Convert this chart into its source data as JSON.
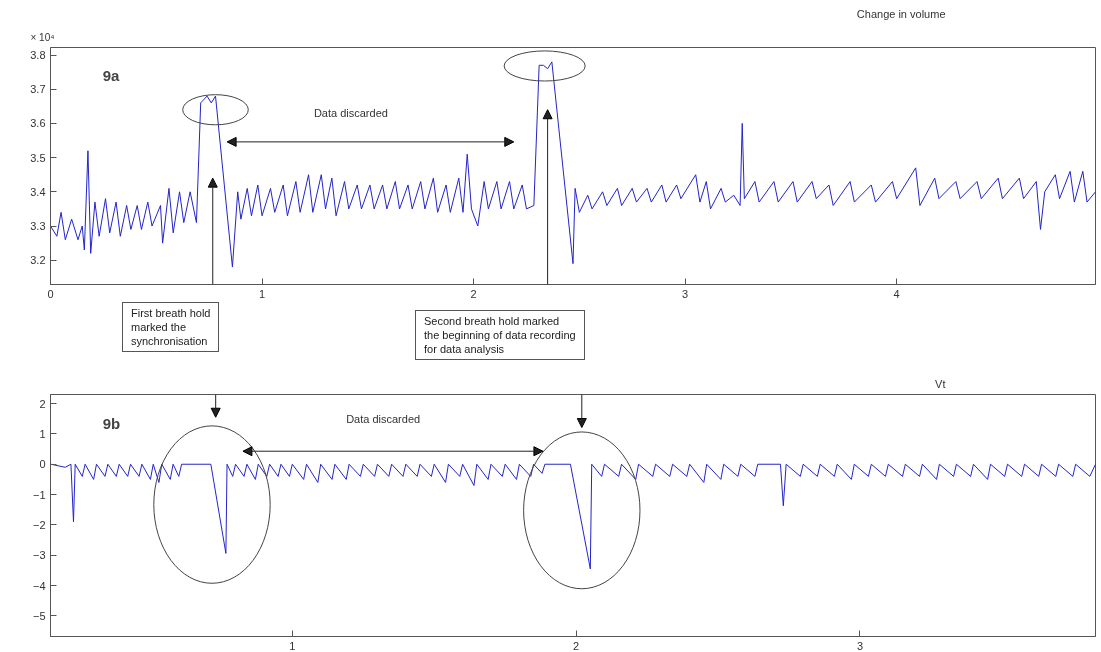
{
  "chart_data": [
    {
      "type": "line",
      "title": "Change in volume",
      "annotations": [
        "9a",
        "× 10⁴",
        "Data discarded"
      ],
      "xlim": [
        0,
        4.94
      ],
      "ylim": [
        3.129,
        3.822
      ],
      "xticks": [
        0,
        1,
        2,
        3,
        4
      ],
      "yticks": [
        3.2,
        3.3,
        3.4,
        3.5,
        3.6,
        3.7,
        3.8
      ],
      "x": [
        0,
        0.03,
        0.05,
        0.07,
        0.1,
        0.13,
        0.15,
        0.16,
        0.177,
        0.19,
        0.21,
        0.23,
        0.26,
        0.28,
        0.31,
        0.33,
        0.36,
        0.38,
        0.41,
        0.43,
        0.46,
        0.48,
        0.52,
        0.53,
        0.56,
        0.58,
        0.61,
        0.63,
        0.66,
        0.69,
        0.71,
        0.74,
        0.76,
        0.78,
        0.86,
        0.885,
        0.9,
        0.93,
        0.95,
        0.98,
        1.0,
        1.04,
        1.06,
        1.1,
        1.12,
        1.16,
        1.18,
        1.22,
        1.24,
        1.28,
        1.3,
        1.33,
        1.35,
        1.39,
        1.41,
        1.45,
        1.47,
        1.51,
        1.53,
        1.57,
        1.59,
        1.63,
        1.65,
        1.69,
        1.71,
        1.75,
        1.77,
        1.81,
        1.83,
        1.87,
        1.89,
        1.93,
        1.95,
        1.97,
        1.99,
        2.02,
        2.05,
        2.07,
        2.11,
        2.13,
        2.17,
        2.19,
        2.23,
        2.25,
        2.285,
        2.31,
        2.33,
        2.35,
        2.37,
        2.47,
        2.48,
        2.5,
        2.54,
        2.56,
        2.61,
        2.63,
        2.68,
        2.7,
        2.75,
        2.77,
        2.82,
        2.84,
        2.89,
        2.91,
        2.96,
        2.98,
        3.05,
        3.07,
        3.1,
        3.12,
        3.17,
        3.19,
        3.23,
        3.26,
        3.27,
        3.28,
        3.33,
        3.35,
        3.42,
        3.44,
        3.51,
        3.53,
        3.6,
        3.62,
        3.68,
        3.7,
        3.78,
        3.8,
        3.88,
        3.9,
        3.98,
        4.0,
        4.09,
        4.11,
        4.18,
        4.2,
        4.28,
        4.3,
        4.38,
        4.4,
        4.48,
        4.5,
        4.58,
        4.6,
        4.66,
        4.68,
        4.7,
        4.75,
        4.77,
        4.82,
        4.84,
        4.88,
        4.9,
        4.94
      ],
      "series": [
        {
          "color": "#2424c8",
          "values": [
            3.3,
            3.27,
            3.34,
            3.26,
            3.32,
            3.26,
            3.3,
            3.23,
            3.52,
            3.22,
            3.37,
            3.27,
            3.38,
            3.28,
            3.37,
            3.27,
            3.36,
            3.29,
            3.36,
            3.29,
            3.37,
            3.3,
            3.36,
            3.25,
            3.41,
            3.28,
            3.4,
            3.31,
            3.4,
            3.31,
            3.66,
            3.68,
            3.66,
            3.68,
            3.18,
            3.4,
            3.32,
            3.41,
            3.33,
            3.42,
            3.33,
            3.41,
            3.34,
            3.42,
            3.33,
            3.43,
            3.34,
            3.45,
            3.34,
            3.45,
            3.35,
            3.44,
            3.33,
            3.43,
            3.35,
            3.42,
            3.35,
            3.42,
            3.35,
            3.42,
            3.35,
            3.43,
            3.35,
            3.42,
            3.35,
            3.43,
            3.35,
            3.44,
            3.34,
            3.42,
            3.34,
            3.44,
            3.34,
            3.51,
            3.35,
            3.3,
            3.43,
            3.35,
            3.43,
            3.35,
            3.43,
            3.35,
            3.42,
            3.35,
            3.36,
            3.77,
            3.77,
            3.76,
            3.78,
            3.19,
            3.41,
            3.34,
            3.39,
            3.35,
            3.4,
            3.36,
            3.41,
            3.36,
            3.41,
            3.37,
            3.41,
            3.37,
            3.42,
            3.37,
            3.42,
            3.38,
            3.45,
            3.37,
            3.43,
            3.35,
            3.41,
            3.37,
            3.39,
            3.36,
            3.6,
            3.38,
            3.43,
            3.37,
            3.43,
            3.37,
            3.43,
            3.37,
            3.43,
            3.38,
            3.42,
            3.36,
            3.43,
            3.37,
            3.42,
            3.37,
            3.43,
            3.38,
            3.47,
            3.36,
            3.44,
            3.38,
            3.43,
            3.38,
            3.43,
            3.38,
            3.44,
            3.38,
            3.44,
            3.38,
            3.43,
            3.29,
            3.4,
            3.45,
            3.38,
            3.46,
            3.37,
            3.46,
            3.37,
            3.4
          ]
        }
      ]
    },
    {
      "type": "line",
      "title": "Vt",
      "annotations": [
        "9b",
        "Data discarded",
        "First breath hold\nmarked the\nsynchronisation",
        "Second breath hold marked\nthe beginning  of data recording\nfor data analysis"
      ],
      "xlim": [
        0.148,
        3.83
      ],
      "ylim": [
        -5.68,
        2.3
      ],
      "xticks": [
        1,
        2,
        3
      ],
      "yticks": [
        -5,
        -4,
        -3,
        -2,
        -1,
        0,
        1,
        2
      ],
      "x": [
        0.15,
        0.2,
        0.22,
        0.229,
        0.235,
        0.26,
        0.27,
        0.3,
        0.31,
        0.34,
        0.35,
        0.38,
        0.39,
        0.42,
        0.43,
        0.46,
        0.47,
        0.5,
        0.51,
        0.53,
        0.54,
        0.57,
        0.58,
        0.6,
        0.61,
        0.713,
        0.766,
        0.77,
        0.79,
        0.8,
        0.83,
        0.84,
        0.87,
        0.88,
        0.91,
        0.92,
        0.95,
        0.96,
        0.99,
        1.0,
        1.04,
        1.05,
        1.09,
        1.1,
        1.14,
        1.15,
        1.19,
        1.2,
        1.24,
        1.25,
        1.29,
        1.3,
        1.34,
        1.35,
        1.39,
        1.4,
        1.44,
        1.45,
        1.49,
        1.5,
        1.54,
        1.55,
        1.59,
        1.6,
        1.64,
        1.65,
        1.69,
        1.7,
        1.74,
        1.75,
        1.79,
        1.8,
        1.84,
        1.85,
        1.88,
        1.89,
        1.925,
        1.98,
        2.05,
        2.055,
        2.09,
        2.1,
        2.15,
        2.16,
        2.21,
        2.22,
        2.27,
        2.28,
        2.33,
        2.34,
        2.39,
        2.4,
        2.45,
        2.46,
        2.51,
        2.52,
        2.57,
        2.58,
        2.63,
        2.64,
        2.72,
        2.73,
        2.74,
        2.79,
        2.8,
        2.85,
        2.86,
        2.91,
        2.92,
        2.97,
        2.98,
        3.03,
        3.04,
        3.09,
        3.1,
        3.15,
        3.16,
        3.21,
        3.22,
        3.27,
        3.28,
        3.33,
        3.34,
        3.39,
        3.4,
        3.45,
        3.46,
        3.51,
        3.52,
        3.57,
        3.58,
        3.63,
        3.64,
        3.69,
        3.7,
        3.75,
        3.76,
        3.81,
        3.83
      ],
      "series": [
        {
          "color": "#2424c8",
          "values": [
            0,
            -0.1,
            0,
            -1.9,
            0,
            -0.4,
            0,
            -0.5,
            0,
            -0.4,
            0,
            -0.4,
            0,
            -0.4,
            0,
            -0.4,
            0,
            -0.5,
            0,
            -0.6,
            0,
            -0.5,
            0,
            -0.4,
            0,
            0,
            -2.94,
            0,
            -0.4,
            0,
            -0.4,
            0,
            -0.5,
            0,
            -0.4,
            0,
            -0.4,
            0,
            -0.4,
            0,
            -0.5,
            0,
            -0.6,
            0,
            -0.5,
            0,
            -0.5,
            0,
            -0.4,
            0,
            -0.4,
            0,
            -0.4,
            0,
            -0.4,
            0,
            -0.4,
            0,
            -0.4,
            0,
            -0.6,
            0,
            -0.4,
            0,
            -0.7,
            0,
            -0.5,
            0,
            -0.4,
            0,
            -0.5,
            0,
            -0.4,
            0,
            -0.3,
            0,
            0,
            0,
            -3.45,
            0,
            -0.4,
            0,
            -0.4,
            0,
            -0.5,
            0,
            -0.4,
            0,
            -0.4,
            0,
            -0.4,
            0,
            -0.6,
            0,
            -0.5,
            0,
            -0.4,
            0,
            -0.4,
            0,
            0,
            -1.37,
            0,
            -0.4,
            0,
            -0.4,
            0,
            -0.4,
            0,
            -0.5,
            0,
            -0.4,
            0,
            -0.4,
            0,
            -0.4,
            0,
            -0.4,
            0,
            -0.5,
            0,
            -0.4,
            0,
            -0.4,
            0,
            -0.5,
            0,
            -0.4,
            0,
            -0.4,
            0,
            -0.4,
            0,
            -0.4,
            0,
            -0.4,
            0,
            -0.4,
            0
          ]
        }
      ]
    }
  ]
}
